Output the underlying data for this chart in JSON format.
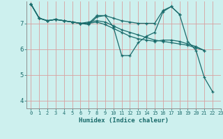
{
  "xlabel": "Humidex (Indice chaleur)",
  "bg_color": "#cdf0ee",
  "grid_color": "#d8a0a0",
  "line_color": "#1a6b6b",
  "xlim": [
    -0.5,
    23
  ],
  "ylim": [
    3.7,
    7.85
  ],
  "xticks": [
    0,
    1,
    2,
    3,
    4,
    5,
    6,
    7,
    8,
    9,
    10,
    11,
    12,
    13,
    14,
    15,
    16,
    17,
    18,
    19,
    20,
    21,
    22,
    23
  ],
  "yticks": [
    4,
    5,
    6,
    7
  ],
  "lines": [
    {
      "x": [
        0,
        1,
        2,
        3,
        4,
        5,
        6,
        7,
        8,
        9,
        10,
        11,
        12,
        13,
        14,
        15,
        16,
        17,
        18,
        19,
        20,
        21,
        22
      ],
      "y": [
        7.75,
        7.2,
        7.1,
        7.15,
        7.1,
        7.05,
        7.0,
        7.0,
        7.3,
        7.3,
        6.85,
        5.75,
        5.75,
        6.25,
        6.5,
        6.65,
        7.45,
        7.65,
        7.35,
        6.3,
        5.95,
        4.9,
        4.35
      ]
    },
    {
      "x": [
        0,
        1,
        2,
        3,
        4,
        5,
        6,
        7,
        8,
        9,
        10,
        11,
        12,
        13,
        14,
        15,
        16,
        17,
        18,
        19,
        20,
        21
      ],
      "y": [
        7.75,
        7.2,
        7.1,
        7.15,
        7.1,
        7.05,
        7.0,
        7.05,
        7.1,
        7.05,
        6.9,
        6.75,
        6.65,
        6.55,
        6.45,
        6.35,
        6.3,
        6.25,
        6.2,
        6.15,
        6.05,
        5.95
      ]
    },
    {
      "x": [
        0,
        1,
        2,
        3,
        4,
        5,
        6,
        7,
        8,
        9,
        10,
        11,
        12,
        13,
        14,
        15,
        16,
        17,
        18
      ],
      "y": [
        7.75,
        7.2,
        7.1,
        7.15,
        7.1,
        7.05,
        7.0,
        6.95,
        7.25,
        7.3,
        7.2,
        7.1,
        7.05,
        7.0,
        7.0,
        7.0,
        7.5,
        7.65,
        7.35
      ]
    },
    {
      "x": [
        0,
        1,
        2,
        3,
        4,
        5,
        6,
        7,
        8,
        9,
        10,
        11,
        12,
        13,
        14,
        15,
        16,
        17,
        18,
        19,
        20,
        21
      ],
      "y": [
        7.75,
        7.2,
        7.1,
        7.15,
        7.1,
        7.05,
        7.0,
        7.0,
        7.05,
        6.95,
        6.8,
        6.65,
        6.5,
        6.4,
        6.35,
        6.3,
        6.35,
        6.35,
        6.3,
        6.2,
        6.1,
        5.95
      ]
    }
  ]
}
